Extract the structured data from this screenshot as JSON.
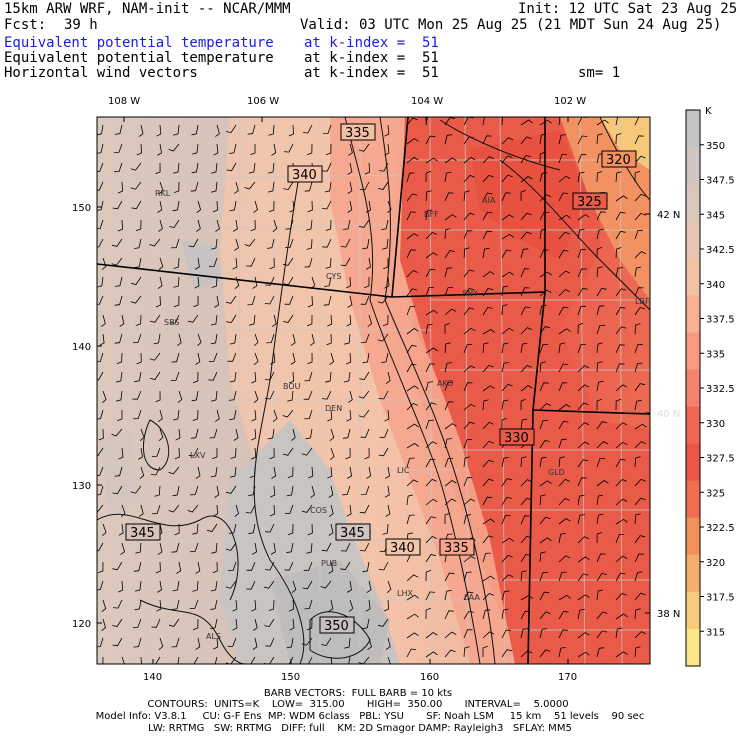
{
  "header": {
    "model": "15km ARW WRF, NAM-init -- NCAR/MMM",
    "fcst_label": "Fcst:",
    "fcst_value": "39 h",
    "init": "Init: 12 UTC Sat 23 Aug 25",
    "valid": "Valid: 03 UTC Mon 25 Aug 25 (21 MDT Sun 24 Aug 25)",
    "lines": [
      {
        "field": "Equivalent potential temperature",
        "level": "at k-index =  51",
        "extra": ""
      },
      {
        "field": "Equivalent potential temperature",
        "level": "at k-index =  51",
        "extra": ""
      },
      {
        "field": "Horizontal wind vectors",
        "level": "at k-index =  51",
        "extra": "sm= 1"
      }
    ]
  },
  "axes": {
    "top_lon": [
      "108 W",
      "106 W",
      "104 W",
      "102 W"
    ],
    "bottom_x": [
      "140",
      "150",
      "160",
      "170"
    ],
    "left_y": [
      "150",
      "140",
      "130",
      "120"
    ],
    "right_lat": [
      "42 N",
      "40 N",
      "38 N"
    ]
  },
  "colorbar": {
    "unit": "K",
    "levels": [
      "350",
      "347.5",
      "345",
      "342.5",
      "340",
      "337.5",
      "335",
      "332.5",
      "330",
      "327.5",
      "325",
      "322.5",
      "320",
      "317.5",
      "315"
    ],
    "colors": [
      "#c4c4c4",
      "#cfc6c1",
      "#d9c7bb",
      "#e5c6b2",
      "#f2c2a4",
      "#f7b193",
      "#f79a80",
      "#f4826d",
      "#ef6655",
      "#ec5649",
      "#ef6e50",
      "#f2905c",
      "#f4ad6b",
      "#f7cb7a",
      "#fde58a"
    ]
  },
  "cities": [
    "RKL",
    "CYS",
    "SBS",
    "BFF",
    "AIA",
    "SNY",
    "LBF",
    "BOU",
    "DEN",
    "AKO",
    "LXV",
    "LIC",
    "GLD",
    "COS",
    "PUB",
    "LHX",
    "LAA",
    "ALS"
  ],
  "contour_labels": [
    "335",
    "340",
    "320",
    "325",
    "330",
    "345",
    "345",
    "340",
    "335",
    "350"
  ],
  "footer": {
    "line1": "BARB VECTORS:  FULL BARB = 10 kts",
    "line2": "CONTOURS:  UNITS=K    LOW=  315.00       HIGH=  350.00       INTERVAL=    5.0000",
    "line3": "Model Info: V3.8.1     CU: G-F Ens  MP: WDM 6class   PBL: YSU       SF: Noah LSM     15 km    51 levels    90 sec",
    "line4": "LW: RRTMG   SW: RRTMG   DIFF: full    KM: 2D Smagor DAMP: Rayleigh3   SFLAY: MM5"
  }
}
